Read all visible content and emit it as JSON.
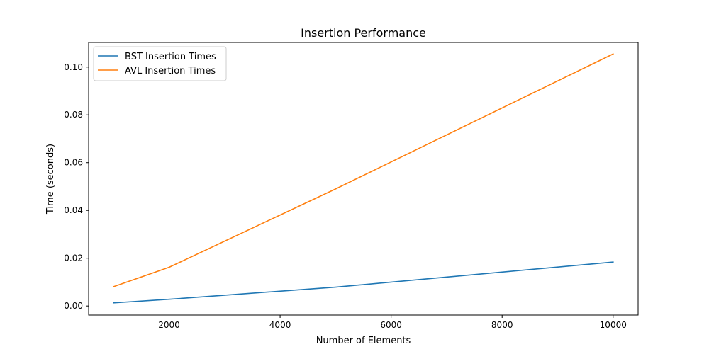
{
  "chart_data": {
    "type": "line",
    "title": "Insertion Performance",
    "xlabel": "Number of Elements",
    "ylabel": "Time (seconds)",
    "xlim": [
      550,
      10450
    ],
    "ylim": [
      -0.0038,
      0.1103
    ],
    "xticks": [
      2000,
      4000,
      6000,
      8000,
      10000
    ],
    "xtick_labels": [
      "2000",
      "4000",
      "6000",
      "8000",
      "10000"
    ],
    "yticks": [
      0.0,
      0.02,
      0.04,
      0.06,
      0.08,
      0.1
    ],
    "ytick_labels": [
      "0.00",
      "0.02",
      "0.04",
      "0.06",
      "0.08",
      "0.10"
    ],
    "grid": false,
    "legend_position": "top-left",
    "x": [
      1000,
      2000,
      5000,
      10000
    ],
    "series": [
      {
        "name": "BST Insertion Times",
        "color": "#1f77b4",
        "values": [
          0.0013,
          0.0028,
          0.0079,
          0.0184
        ]
      },
      {
        "name": "AVL Insertion Times",
        "color": "#ff7f0e",
        "values": [
          0.0081,
          0.0162,
          0.049,
          0.1055
        ]
      }
    ]
  }
}
